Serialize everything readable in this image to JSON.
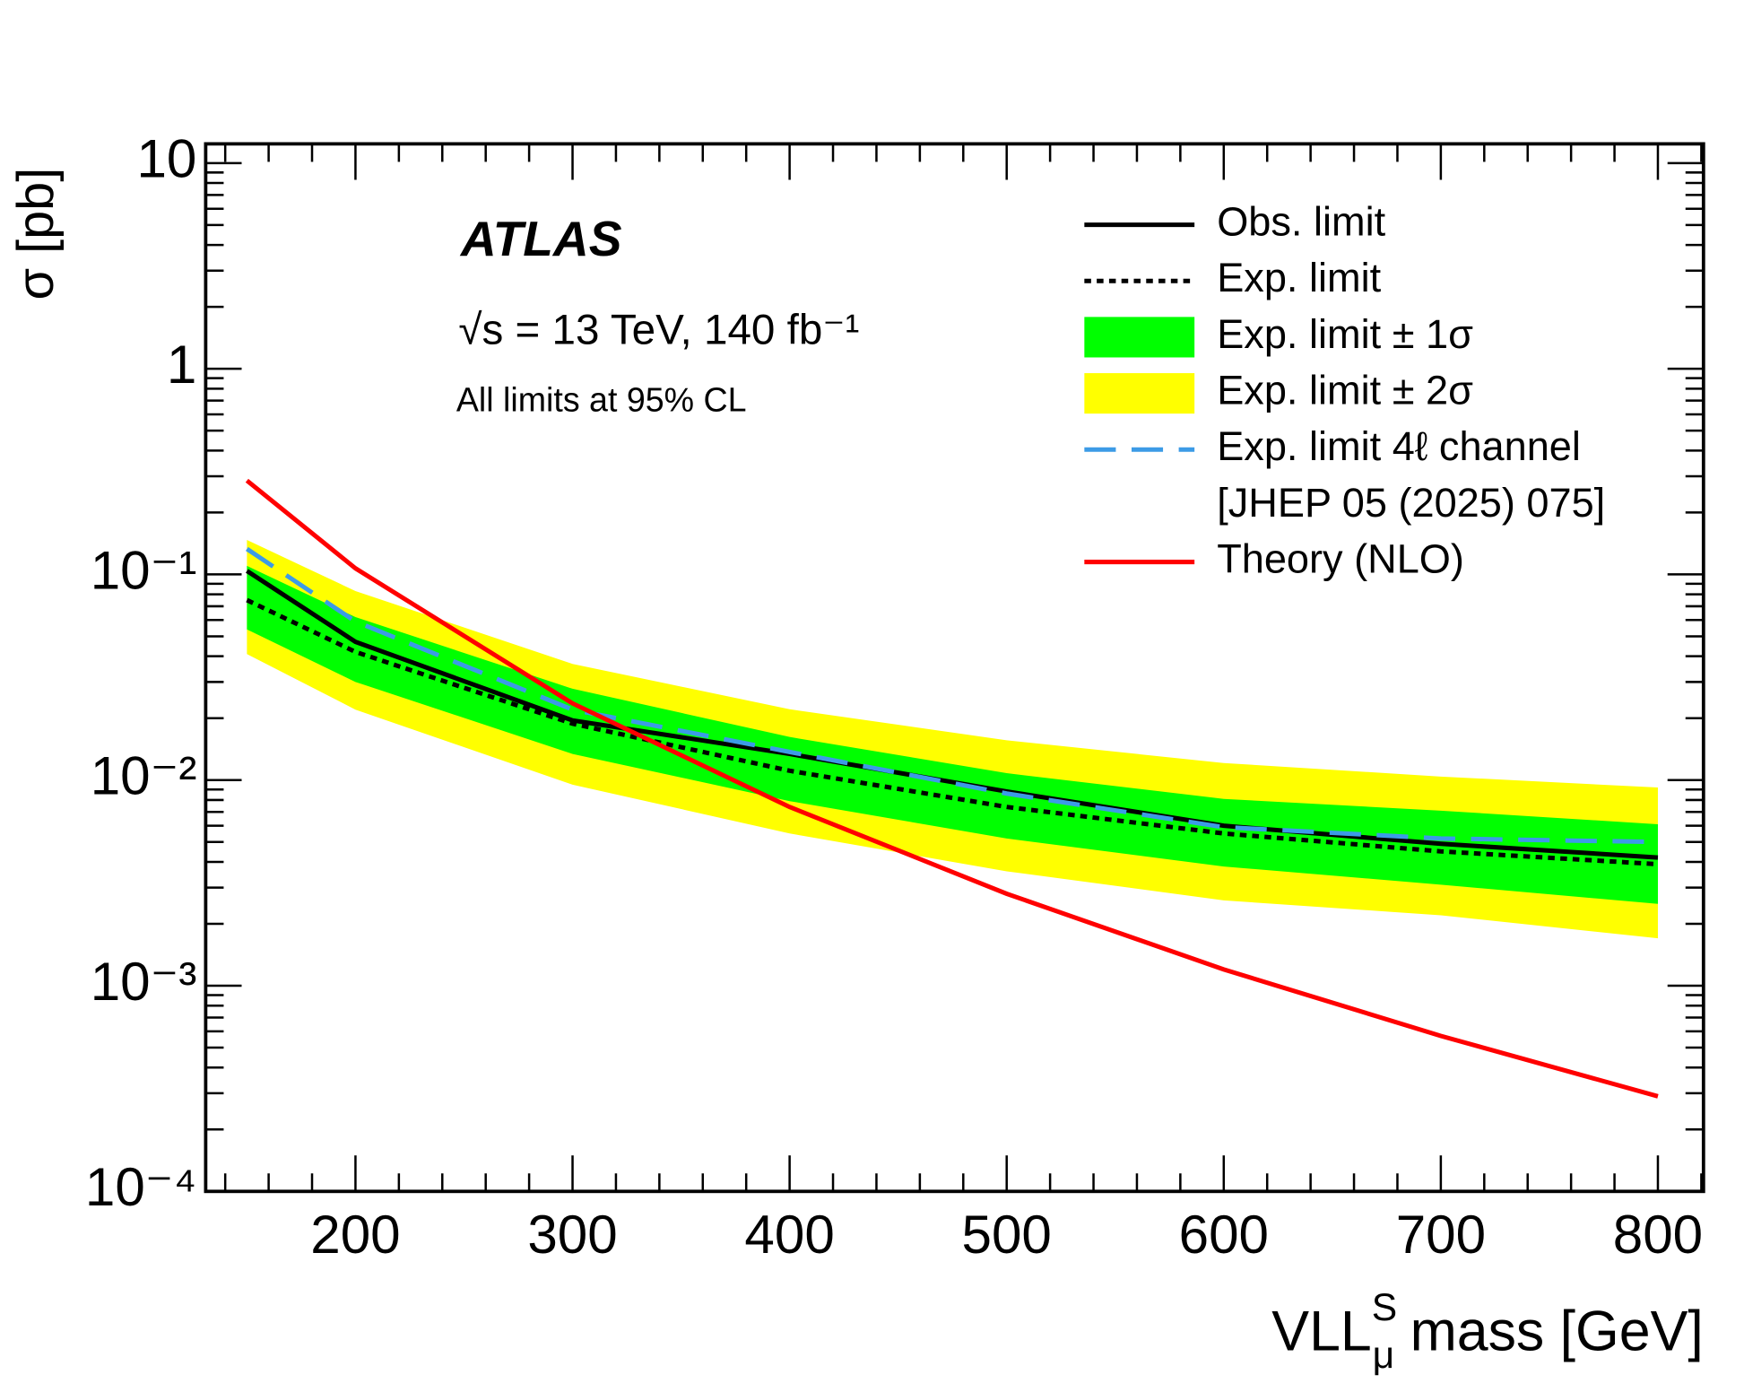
{
  "chart_data": {
    "type": "line",
    "y_label": "σ [pb]",
    "x_label": {
      "base": "VLL",
      "sup": "S",
      "sub": "μ",
      "rest": " mass [GeV]"
    },
    "annotations": [
      "ATLAS",
      "√s = 13 TeV, 140 fb⁻¹",
      "All limits at 95% CL"
    ],
    "x": [
      150,
      200,
      300,
      400,
      500,
      600,
      700,
      800
    ],
    "xlim": [
      131,
      821
    ],
    "xticks": [
      200,
      300,
      400,
      500,
      600,
      700,
      800
    ],
    "ylim": [
      0.0001,
      12.4
    ],
    "log_y": true,
    "yticks": [
      {
        "value": 0.0001,
        "label": "10⁻⁴"
      },
      {
        "value": 0.001,
        "label": "10⁻³"
      },
      {
        "value": 0.01,
        "label": "10⁻²"
      },
      {
        "value": 0.1,
        "label": "10⁻¹"
      },
      1,
      10
    ],
    "legend_note": "[JHEP 05 (2025) 075]",
    "series": [
      {
        "name": "Obs. limit",
        "color": "#000000",
        "style": "solid",
        "values": [
          0.104,
          0.047,
          0.0195,
          0.0134,
          0.0088,
          0.006,
          0.0049,
          0.0042
        ]
      },
      {
        "name": "Exp. limit",
        "color": "#000000",
        "style": "dotted",
        "values": [
          0.075,
          0.042,
          0.0188,
          0.0111,
          0.0074,
          0.0055,
          0.0045,
          0.0039
        ]
      },
      {
        "name": "Exp. limit ± 1σ",
        "color": "#00ff00",
        "style": "band",
        "upper": [
          0.11,
          0.062,
          0.0278,
          0.0162,
          0.0108,
          0.0081,
          0.0071,
          0.0061
        ],
        "lower": [
          0.054,
          0.03,
          0.0134,
          0.0079,
          0.0052,
          0.0038,
          0.0031,
          0.0025
        ]
      },
      {
        "name": "Exp. limit ± 2σ",
        "color": "#ffff00",
        "style": "band",
        "upper": [
          0.147,
          0.083,
          0.0367,
          0.0221,
          0.0156,
          0.0121,
          0.0104,
          0.0092
        ],
        "lower": [
          0.041,
          0.022,
          0.0095,
          0.0055,
          0.0036,
          0.0026,
          0.0022,
          0.0017
        ]
      },
      {
        "name": "Exp. limit 4ℓ channel",
        "color": "#3c9be6",
        "style": "dashed",
        "values": [
          0.133,
          0.059,
          0.022,
          0.0137,
          0.0086,
          0.0059,
          0.0052,
          0.005
        ]
      },
      {
        "name": "Theory (NLO)",
        "color": "#ff0000",
        "style": "solid",
        "values": [
          0.286,
          0.107,
          0.0236,
          0.0074,
          0.0028,
          0.0012,
          0.00057,
          0.00029
        ]
      }
    ]
  }
}
